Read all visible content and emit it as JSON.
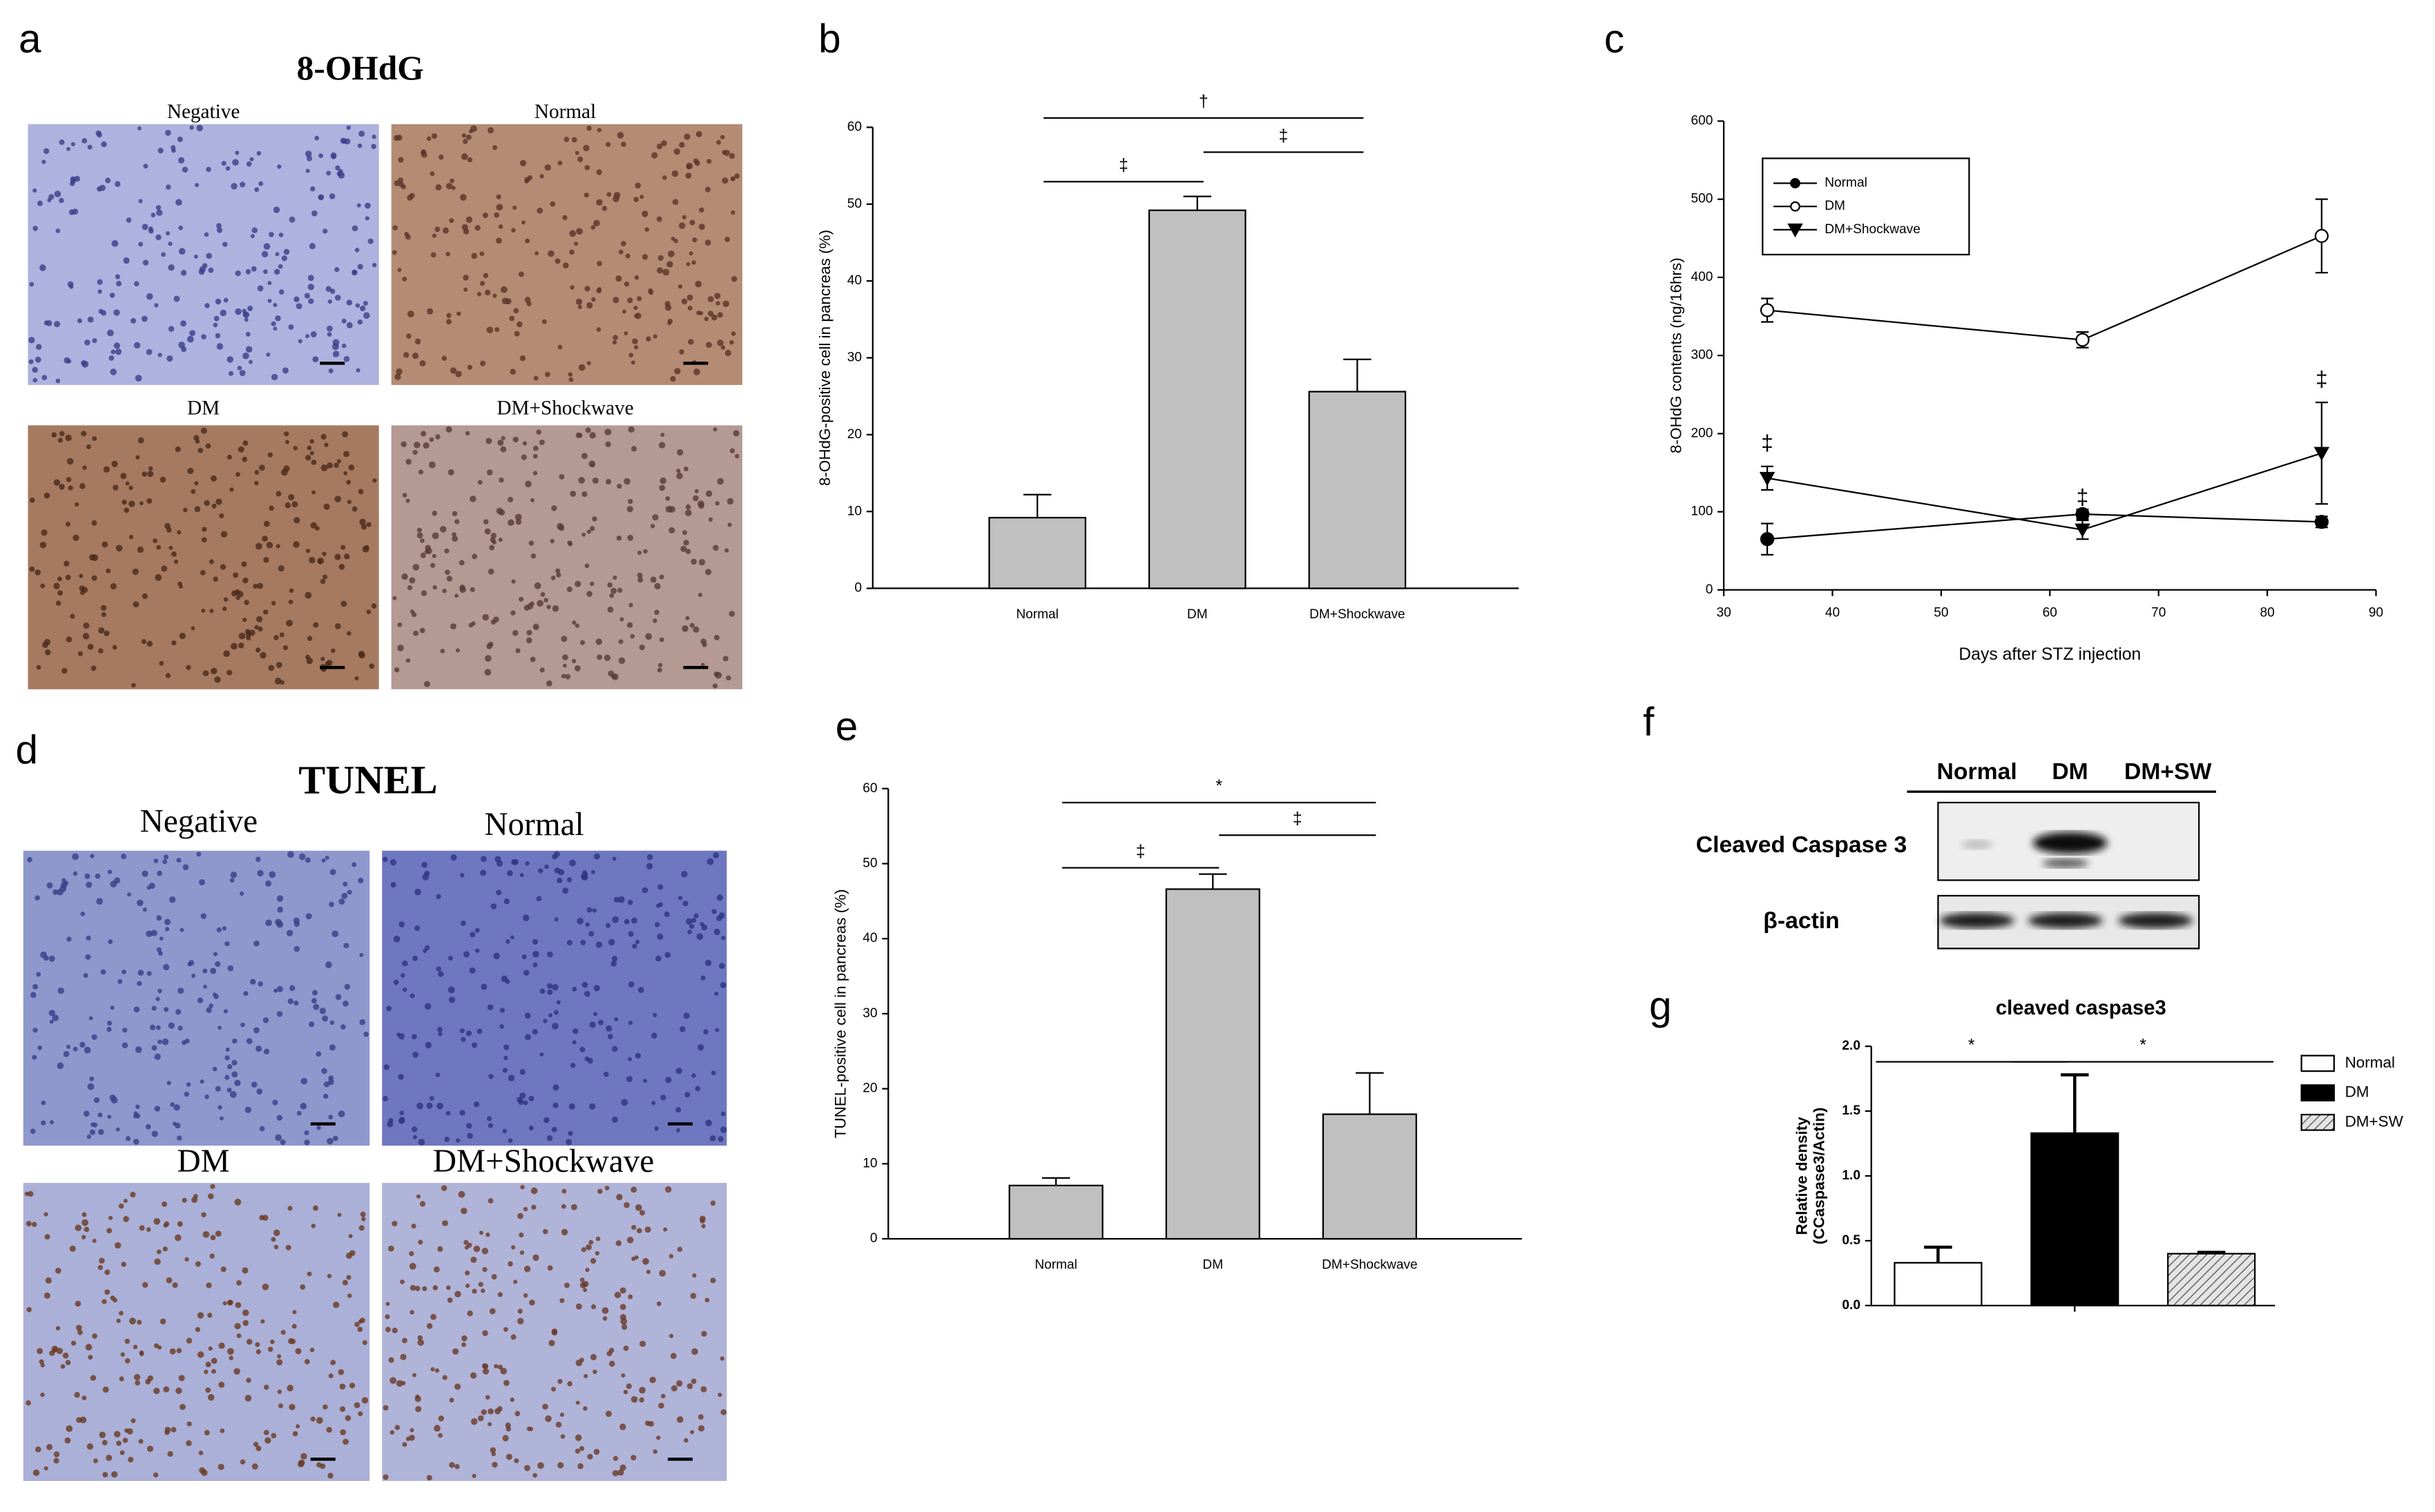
{
  "panel_letters": [
    "a",
    "b",
    "c",
    "d",
    "e",
    "f",
    "g"
  ],
  "histology": [
    {
      "title": "8-OHdG",
      "labels": [
        "Negative",
        "Normal",
        "DM",
        "DM+Shockwave"
      ]
    },
    {
      "title": "TUNEL",
      "labels": [
        "Negative",
        "Normal",
        "DM",
        "DM+Shockwave"
      ]
    }
  ],
  "blot": {
    "lanes": [
      "Normal",
      "DM",
      "DM+SW"
    ],
    "rows": [
      "Cleaved Caspase 3",
      "β-actin"
    ]
  },
  "chart_data": [
    {
      "type": "bar",
      "ylabel": "8-OHdG-positive cell in pancreas (%)",
      "categories": [
        "Normal",
        "DM",
        "DM+Shockwave"
      ],
      "values": [
        9.2,
        49.2,
        25.6
      ],
      "errors": [
        3,
        1.8,
        4.2
      ],
      "color": "#c0c0c0",
      "ylim": [
        0,
        60
      ],
      "yticks": [
        0,
        10,
        20,
        30,
        40,
        50,
        60
      ],
      "annotations": [
        {
          "text": "†",
          "between": [
            "Normal",
            "DM+Shockwave"
          ]
        },
        {
          "text": "‡",
          "between": [
            "DM",
            "DM+Shockwave"
          ]
        },
        {
          "text": "‡",
          "between": [
            "Normal",
            "DM"
          ]
        }
      ]
    },
    {
      "type": "line",
      "xlabel": "Days after STZ injection",
      "ylabel": "8-OHdG contents (ng/16hrs)",
      "x": [
        34,
        63,
        85
      ],
      "series": [
        {
          "name": "Normal",
          "color": "#000000",
          "marker": "circle",
          "values": [
            65,
            97,
            87
          ],
          "errors": [
            20,
            6,
            7
          ]
        },
        {
          "name": "DM",
          "color": "#000000",
          "marker": "open-circle",
          "values": [
            358,
            320,
            453
          ],
          "errors": [
            15,
            10,
            47
          ]
        },
        {
          "name": "DM+Shockwave",
          "color": "#000000",
          "marker": "triangle-down",
          "values": [
            143,
            77,
            175
          ],
          "errors": [
            15,
            12,
            65
          ]
        }
      ],
      "xlim": [
        30,
        90
      ],
      "xticks": [
        30,
        40,
        50,
        60,
        70,
        80,
        90
      ],
      "ylim": [
        0,
        600
      ],
      "yticks": [
        0,
        100,
        200,
        300,
        400,
        500,
        600
      ],
      "legend": "upper left",
      "annotations": [
        {
          "text": "‡",
          "x": 34
        },
        {
          "text": "‡",
          "x": 63
        },
        {
          "text": "‡",
          "x": 85
        }
      ]
    },
    {
      "type": "bar",
      "ylabel": "TUNEL-positive cell in pancreas (%)",
      "categories": [
        "Normal",
        "DM",
        "DM+Shockwave"
      ],
      "values": [
        7.1,
        46.6,
        16.6
      ],
      "errors": [
        1,
        2,
        5.5
      ],
      "color": "#c0c0c0",
      "ylim": [
        0,
        60
      ],
      "yticks": [
        0,
        10,
        20,
        30,
        40,
        50,
        60
      ],
      "annotations": [
        {
          "text": "*",
          "between": [
            "Normal",
            "DM+Shockwave"
          ]
        },
        {
          "text": "‡",
          "between": [
            "DM",
            "DM+Shockwave"
          ]
        },
        {
          "text": "‡",
          "between": [
            "Normal",
            "DM"
          ]
        }
      ]
    },
    {
      "type": "bar",
      "title": "cleaved caspase3",
      "ylabel": [
        "Relative density",
        "(CCaspase3/Actin)"
      ],
      "categories": [
        "Normal",
        "DM",
        "DM+SW"
      ],
      "values": [
        0.33,
        1.33,
        0.4
      ],
      "errors": [
        0.12,
        0.45,
        0.01
      ],
      "colors": [
        "#ffffff",
        "#000000",
        "#d8d8d8"
      ],
      "hatch": [
        false,
        false,
        true
      ],
      "ylim": [
        0,
        2
      ],
      "yticks": [
        {
          "value": 0,
          "label": "0.0"
        },
        0.5,
        {
          "value": 1,
          "label": "1.0"
        },
        1.5,
        {
          "value": 2,
          "label": "2.0"
        }
      ],
      "legend": "right",
      "annotations": [
        {
          "text": "*",
          "between": [
            "Normal",
            "DM"
          ]
        },
        {
          "text": "*",
          "between": [
            "DM",
            "DM+SW"
          ]
        }
      ]
    }
  ]
}
